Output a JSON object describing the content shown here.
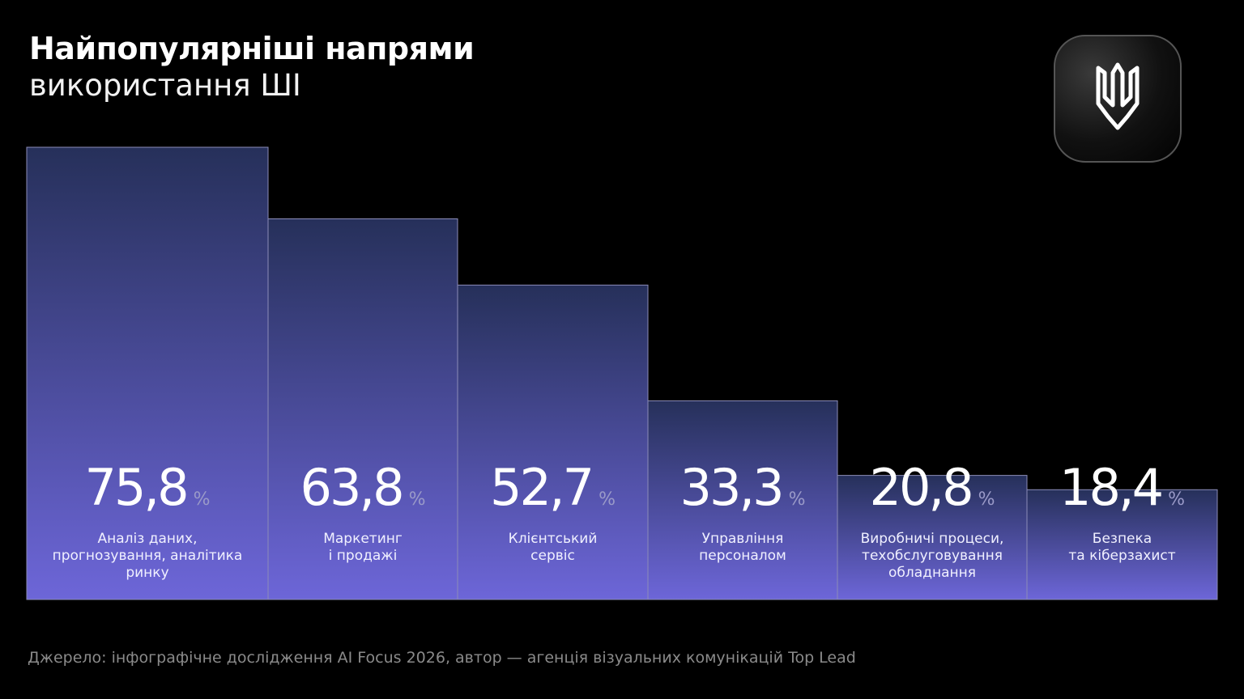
{
  "chart_data": {
    "type": "bar",
    "title": "Найпопулярніші напрями",
    "subtitle": "використання ШІ",
    "categories": [
      "Аналіз даних,\nпрогнозування, аналітика\nринку",
      "Маркетинг\nі продажі",
      "Клієнтський\nсервіс",
      "Управління\nперсоналом",
      "Виробничі процеси,\nтехобслуговування\nобладнання",
      "Безпека\nта кіберзахист"
    ],
    "values": [
      75.8,
      63.8,
      52.7,
      33.3,
      20.8,
      18.4
    ],
    "value_labels": [
      "75,8",
      "63,8",
      "52,7",
      "33,3",
      "20,8",
      "18,4"
    ],
    "unit": "%",
    "color_top": "#26305a",
    "color_bottom": "#6d66d8",
    "source": "Джерело: інфографічне дослідження AI Focus 2026, автор — агенція візуальних комунікацій Top Lead"
  }
}
